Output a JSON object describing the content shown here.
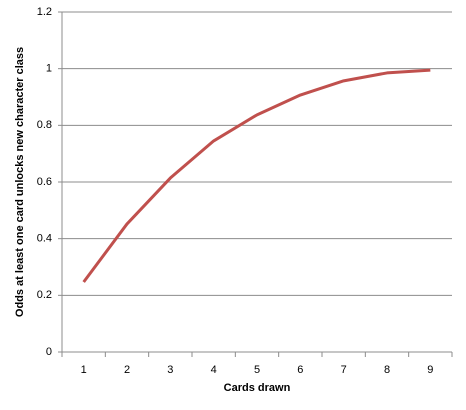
{
  "chart_data": {
    "type": "line",
    "x_label": "Cards drawn",
    "y_label": "Odds at least one card  unlocks new character class",
    "categories": [
      "1",
      "2",
      "3",
      "4",
      "5",
      "6",
      "7",
      "8",
      "9"
    ],
    "series": [
      {
        "name": "Odds",
        "color": "#c0504d",
        "values": [
          0.247,
          0.452,
          0.614,
          0.745,
          0.837,
          0.907,
          0.957,
          0.985,
          0.995
        ]
      }
    ],
    "ylim": [
      0,
      1.2
    ],
    "yticks": [
      0,
      0.2,
      0.4,
      0.6,
      0.8,
      1,
      1.2
    ],
    "grid": true
  }
}
